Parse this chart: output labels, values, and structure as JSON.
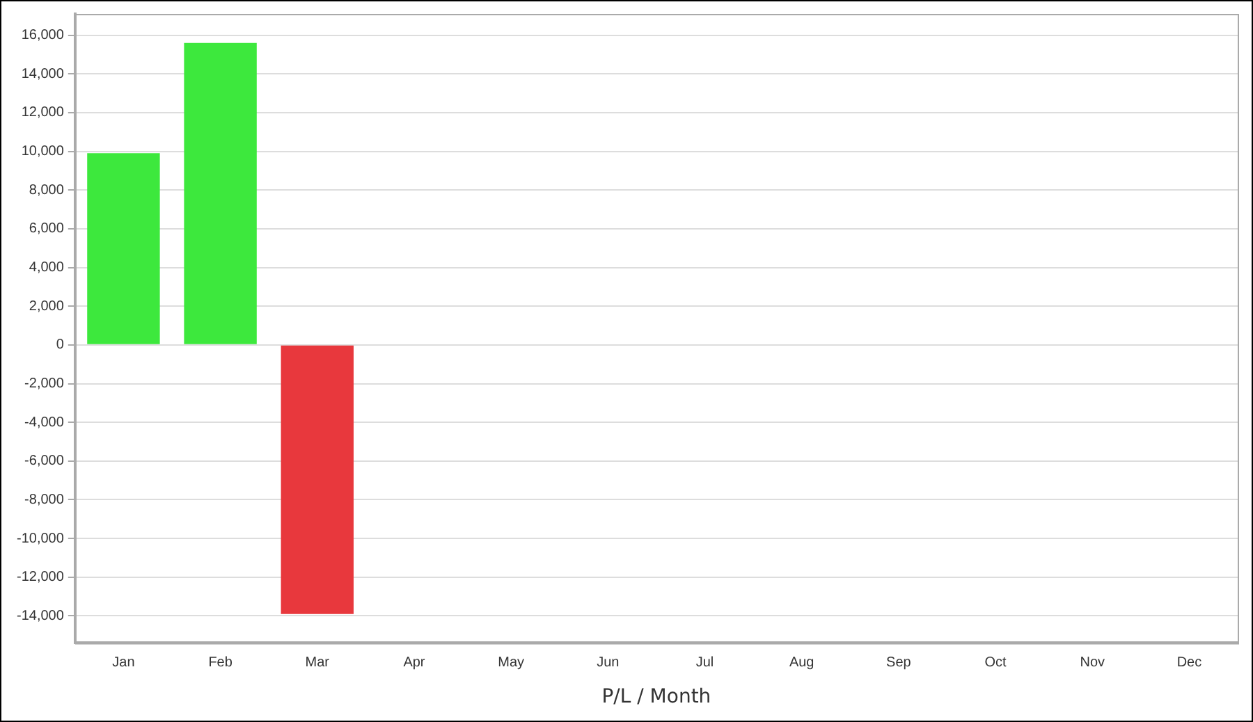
{
  "chart_data": {
    "type": "bar",
    "xlabel": "P/L / Month",
    "categories": [
      "Jan",
      "Feb",
      "Mar",
      "Apr",
      "May",
      "Jun",
      "Jul",
      "Aug",
      "Sep",
      "Oct",
      "Nov",
      "Dec"
    ],
    "values": [
      9900,
      15600,
      -13900,
      null,
      null,
      null,
      null,
      null,
      null,
      null,
      null,
      null
    ],
    "colors": [
      "#3de83d",
      "#3de83d",
      "#e8383d",
      null,
      null,
      null,
      null,
      null,
      null,
      null,
      null,
      null
    ],
    "ylim": [
      -15400,
      17100
    ],
    "yticks": [
      {
        "value": -14000,
        "label": "-14,000"
      },
      {
        "value": -12000,
        "label": "-12,000"
      },
      {
        "value": -10000,
        "label": "-10,000"
      },
      {
        "value": -8000,
        "label": "-8,000"
      },
      {
        "value": -6000,
        "label": "-6,000"
      },
      {
        "value": -4000,
        "label": "-4,000"
      },
      {
        "value": -2000,
        "label": "-2,000"
      },
      0,
      {
        "value": 2000,
        "label": "2,000"
      },
      {
        "value": 4000,
        "label": "4,000"
      },
      {
        "value": 6000,
        "label": "6,000"
      },
      {
        "value": 8000,
        "label": "8,000"
      },
      {
        "value": 10000,
        "label": "10,000"
      },
      {
        "value": 12000,
        "label": "12,000"
      },
      {
        "value": 14000,
        "label": "14,000"
      },
      {
        "value": 16000,
        "label": "16,000"
      }
    ],
    "grid": "y",
    "legend": false
  }
}
